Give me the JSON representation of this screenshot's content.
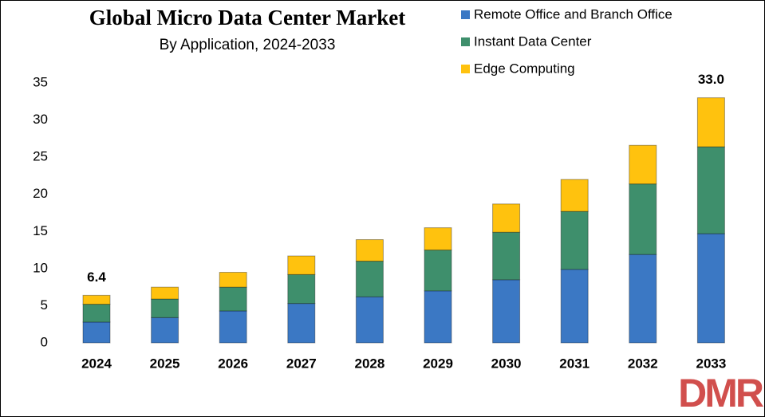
{
  "chart_data": {
    "type": "stacked_bar",
    "title": "Global Micro Data Center Market",
    "subtitle": "By Application, 2024-2033",
    "categories": [
      "2024",
      "2025",
      "2026",
      "2027",
      "2028",
      "2029",
      "2030",
      "2031",
      "2032",
      "2033"
    ],
    "series": [
      {
        "name": "Remote Office and Branch Office",
        "color": "#3b78c4",
        "values": [
          2.8,
          3.4,
          4.3,
          5.3,
          6.2,
          7.0,
          8.5,
          9.9,
          11.9,
          14.7
        ]
      },
      {
        "name": "Instant Data Center",
        "color": "#3e8f6c",
        "values": [
          2.4,
          2.5,
          3.2,
          3.9,
          4.8,
          5.5,
          6.4,
          7.8,
          9.5,
          11.7
        ]
      },
      {
        "name": "Edge Computing",
        "color": "#ffc20e",
        "values": [
          1.2,
          1.6,
          2.0,
          2.5,
          2.9,
          3.0,
          3.8,
          4.3,
          5.2,
          6.6
        ]
      }
    ],
    "annotations": [
      {
        "x": "2024",
        "text": "6.4"
      },
      {
        "x": "2033",
        "text": "33.0"
      }
    ],
    "ylim": [
      0,
      35
    ],
    "yticks": [
      0,
      5,
      10,
      15,
      20,
      25,
      30,
      35
    ],
    "grid": false,
    "legend": "top-right",
    "logo": "DMR"
  }
}
